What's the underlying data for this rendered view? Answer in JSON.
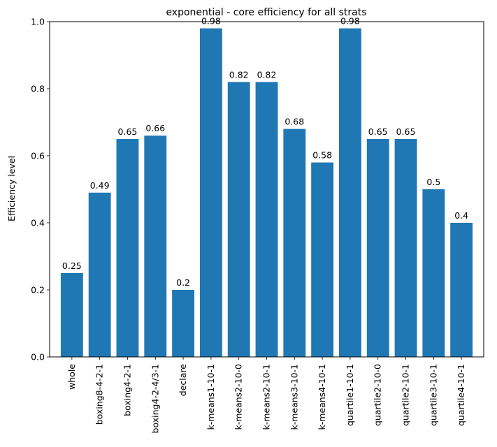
{
  "chart_data": {
    "type": "bar",
    "title": "exponential - core efficiency for all strats",
    "xlabel": "",
    "ylabel": "Efficiency level",
    "ylim": [
      0,
      1.0
    ],
    "yticks": [
      "0.0",
      "0.2",
      "0.4",
      "0.6",
      "0.8",
      "1.0"
    ],
    "grid": false,
    "bar_color": "#1f77b4",
    "categories": [
      "whole",
      "boxing8-4-2-1",
      "boxing4-2-1",
      "boxing4-2-4/3-1",
      "declare",
      "k-means1-10-1",
      "k-means2-10-0",
      "k-means2-10-1",
      "k-means3-10-1",
      "k-means4-10-1",
      "quartile1-10-1",
      "quartile2-10-0",
      "quartile2-10-1",
      "quartile3-10-1",
      "quartile4-10-1"
    ],
    "values": [
      0.25,
      0.49,
      0.65,
      0.66,
      0.2,
      0.98,
      0.82,
      0.82,
      0.68,
      0.58,
      0.98,
      0.65,
      0.65,
      0.5,
      0.4
    ],
    "data_labels": [
      "0.25",
      "0.49",
      "0.65",
      "0.66",
      "0.2",
      "0.98",
      "0.82",
      "0.82",
      "0.68",
      "0.58",
      "0.98",
      "0.65",
      "0.65",
      "0.5",
      "0.4"
    ]
  }
}
